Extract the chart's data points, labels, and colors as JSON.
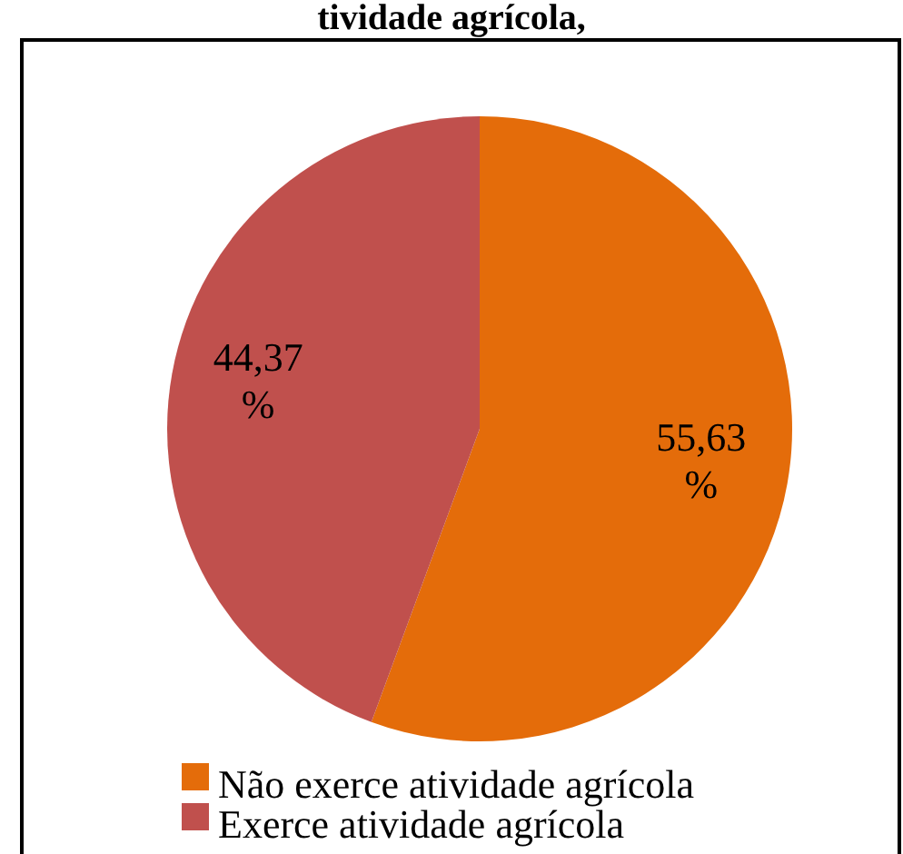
{
  "chart_data": {
    "type": "pie",
    "title": "tividade agrícola,",
    "categories": [
      "Não exerce atividade agrícola",
      "Exerce atividade agrícola"
    ],
    "values": [
      55.63,
      44.37
    ],
    "colors": [
      "#e46c0a",
      "#c0504d"
    ],
    "value_labels": [
      "55,63 %",
      "44,37 %"
    ],
    "legend": "bottom"
  }
}
